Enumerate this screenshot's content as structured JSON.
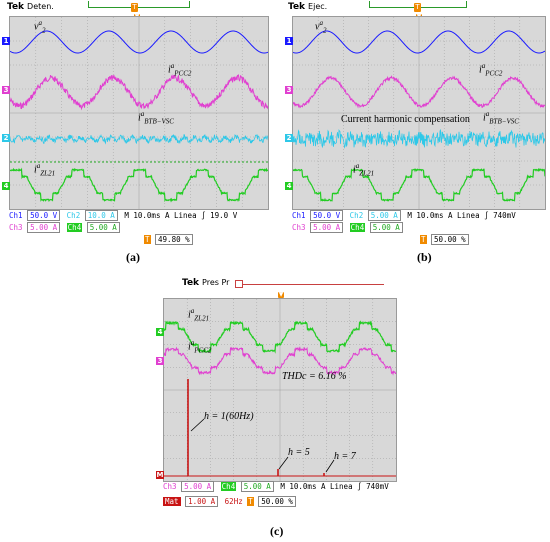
{
  "panels": [
    {
      "id": "a",
      "brand": "Tek",
      "mode": "Deten.",
      "caption": "(a)",
      "labels": {
        "v": "v",
        "v_sub": "2",
        "v_sup": "a",
        "i1": "i",
        "i1_sub": "PCC2",
        "i1_sup": "a",
        "i2": "i",
        "i2_sub": "BTB−VSC",
        "i2_sup": "a",
        "i3": "i",
        "i3_sub": "ZL21",
        "i3_sup": "a"
      },
      "status": {
        "ch1": "Ch1",
        "ch1_val": "50.0 V",
        "ch2": "Ch2",
        "ch2_val": "10.0 A",
        "ch3": "Ch3",
        "ch3_val": "5.00 A",
        "ch4": "Ch4",
        "ch4_val": "5.00 A",
        "time": "M 10.0ms",
        "trig": "A Linea ∫",
        "trig_val": "19.0 V",
        "pos": "49.80 %"
      }
    },
    {
      "id": "b",
      "brand": "Tek",
      "mode": "Ejec.",
      "caption": "(b)",
      "labels": {
        "v": "v",
        "v_sub": "2",
        "v_sup": "a",
        "i1": "i",
        "i1_sub": "PCC2",
        "i1_sup": "a",
        "i2": "i",
        "i2_sub": "BTB−VSC",
        "i2_sup": "a",
        "i3": "i",
        "i3_sub": "ZL21",
        "i3_sup": "a",
        "note": "Current harmonic compensation"
      },
      "status": {
        "ch1": "Ch1",
        "ch1_val": "50.0 V",
        "ch2": "Ch2",
        "ch2_val": "5.00 A",
        "ch3": "Ch3",
        "ch3_val": "5.00 A",
        "ch4": "Ch4",
        "ch4_val": "5.00 A",
        "time": "M 10.0ms",
        "trig": "A Linea ∫",
        "trig_val": "740mV",
        "pos": "50.00 %"
      }
    },
    {
      "id": "c",
      "brand": "Tek",
      "mode": "Pres Pr",
      "caption": "(c)",
      "labels": {
        "i3": "i",
        "i3_sub": "ZL21",
        "i3_sup": "a",
        "i1": "i",
        "i1_sub": "PCC2",
        "i1_sup": "a",
        "thd": "THDc = 6.16 %",
        "h1": "h = 1(60Hz)",
        "h5": "h = 5",
        "h7": "h = 7"
      },
      "status": {
        "ch3": "Ch3",
        "ch3_val": "5.00 A",
        "ch4": "Ch4",
        "ch4_val": "5.00 A",
        "time": "M 10.0ms",
        "trig": "A Linea ∫",
        "trig_val": "740mV",
        "math": "Mat",
        "math_val": "1.00 A",
        "math_freq": "62Hz",
        "pos": "50.00 %"
      }
    }
  ],
  "colors": {
    "ch1": "#1a1aff",
    "ch2": "#2ec8e8",
    "ch3": "#e040d0",
    "ch4": "#22cc22",
    "math": "#c81414",
    "trigger": "#f08a00",
    "grid": "#9e9e9e",
    "screen": "#d8d8d8"
  },
  "chart_data": {
    "type": "line",
    "series": [
      {
        "name": "v2a",
        "values": []
      },
      {
        "name": "iPCC2a",
        "values": []
      },
      {
        "name": "iBTB-VSCa",
        "values": []
      },
      {
        "name": "iZL21a",
        "values": []
      }
    ],
    "spectrum": {
      "type": "bar",
      "categories": [
        "h = 1(60Hz)",
        "h = 5",
        "h = 7"
      ],
      "values": [],
      "thd": "THDc = 6.16 %"
    }
  }
}
